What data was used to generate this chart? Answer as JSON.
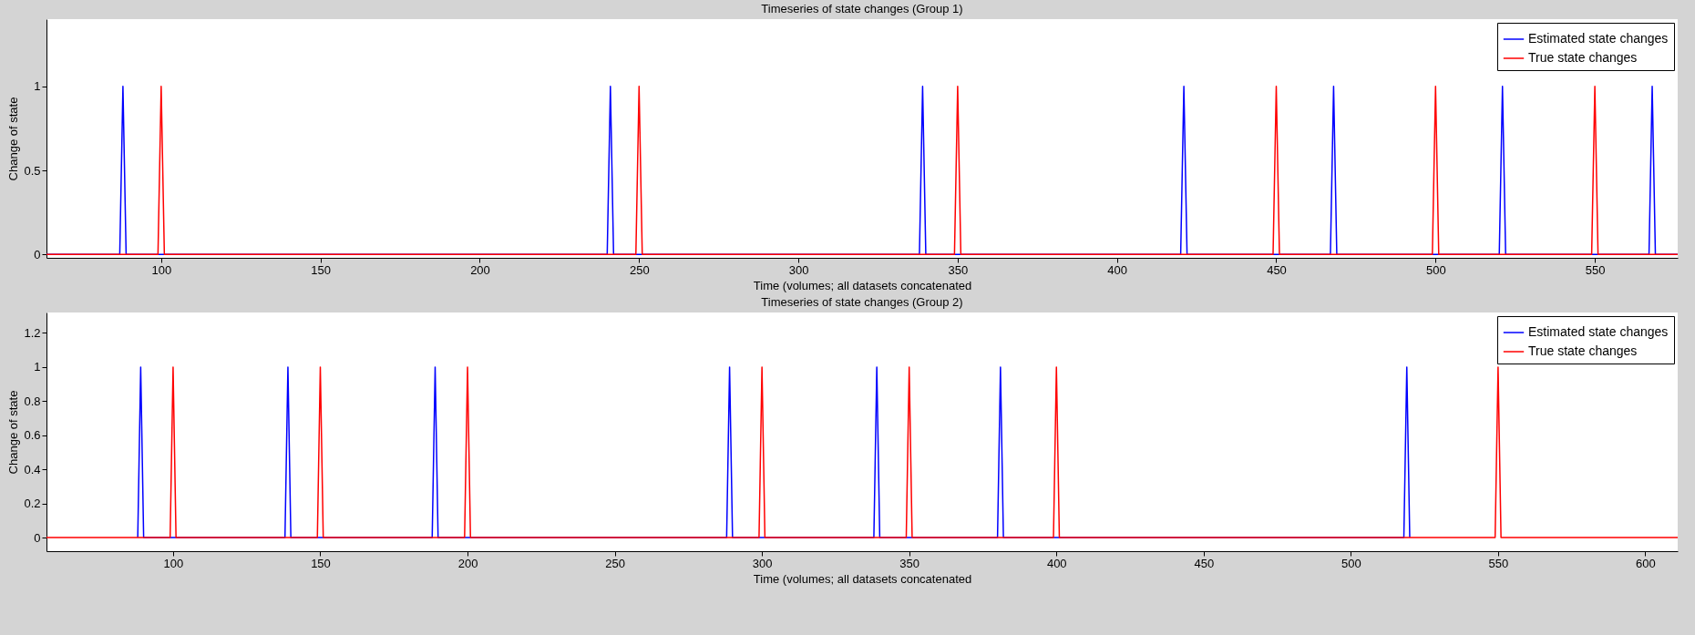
{
  "chart_data": [
    {
      "type": "line",
      "title": "Timeseries of state changes (Group 1)",
      "xlabel": "Time (volumes; all datasets concatenated",
      "ylabel": "Change of state",
      "xlim": [
        64,
        576
      ],
      "ylim": [
        -0.02,
        1.4
      ],
      "xticks": [
        100,
        150,
        200,
        250,
        300,
        350,
        400,
        450,
        500,
        550
      ],
      "yticks": [
        0,
        0.5,
        1
      ],
      "grid": false,
      "legend": "top right",
      "series": [
        {
          "name": "Estimated state changes",
          "color": "#0000ff",
          "x": [
            64,
            87,
            88,
            89,
            240,
            241,
            242,
            338,
            339,
            340,
            420,
            421,
            422,
            467,
            468,
            469,
            520,
            521,
            522,
            567,
            568,
            569,
            576
          ],
          "values": [
            0,
            0,
            1,
            0,
            0,
            1,
            0,
            0,
            1,
            0,
            0,
            1,
            0,
            0,
            1,
            0,
            0,
            1,
            0,
            0,
            1,
            0,
            0
          ]
        },
        {
          "name": "True state changes",
          "color": "#ff0000",
          "x": [
            64,
            99,
            100,
            101,
            249,
            250,
            251,
            349,
            350,
            351,
            449,
            450,
            451,
            499,
            500,
            501,
            549,
            550,
            551,
            576
          ],
          "values": [
            0,
            0,
            1,
            0,
            0,
            1,
            0,
            0,
            1,
            0,
            0,
            1,
            0,
            0,
            1,
            0,
            0,
            1,
            0,
            0
          ]
        }
      ]
    },
    {
      "type": "line",
      "title": "Timeseries of state changes (Group 2)",
      "xlabel": "Time (volumes; all datasets concatenated",
      "ylabel": "Change of state",
      "xlim": [
        57,
        611
      ],
      "ylim": [
        -0.08,
        1.32
      ],
      "xticks": [
        100,
        150,
        200,
        250,
        300,
        350,
        400,
        450,
        500,
        550,
        600
      ],
      "yticks": [
        0,
        0.2,
        0.4,
        0.6,
        0.8,
        1,
        1.2
      ],
      "grid": false,
      "legend": "top right",
      "series": [
        {
          "name": "Estimated state changes",
          "color": "#0000ff",
          "x": [
            88,
            89,
            90,
            138,
            139,
            140,
            188,
            189,
            190,
            288,
            289,
            290,
            338,
            339,
            340,
            380,
            381,
            382,
            518,
            519,
            520
          ],
          "values": [
            0,
            1,
            0,
            0,
            1,
            0,
            0,
            1,
            0,
            0,
            1,
            0,
            0,
            1,
            0,
            0,
            1,
            0,
            0,
            1,
            0
          ]
        },
        {
          "name": "True state changes",
          "color": "#ff0000",
          "x": [
            57,
            99,
            100,
            101,
            149,
            150,
            151,
            199,
            200,
            201,
            299,
            300,
            301,
            349,
            350,
            351,
            399,
            400,
            401,
            549,
            550,
            551,
            611
          ],
          "values": [
            0,
            0,
            1,
            0,
            0,
            1,
            0,
            0,
            1,
            0,
            0,
            1,
            0,
            0,
            1,
            0,
            0,
            1,
            0,
            0,
            1,
            0,
            0
          ]
        }
      ]
    }
  ]
}
